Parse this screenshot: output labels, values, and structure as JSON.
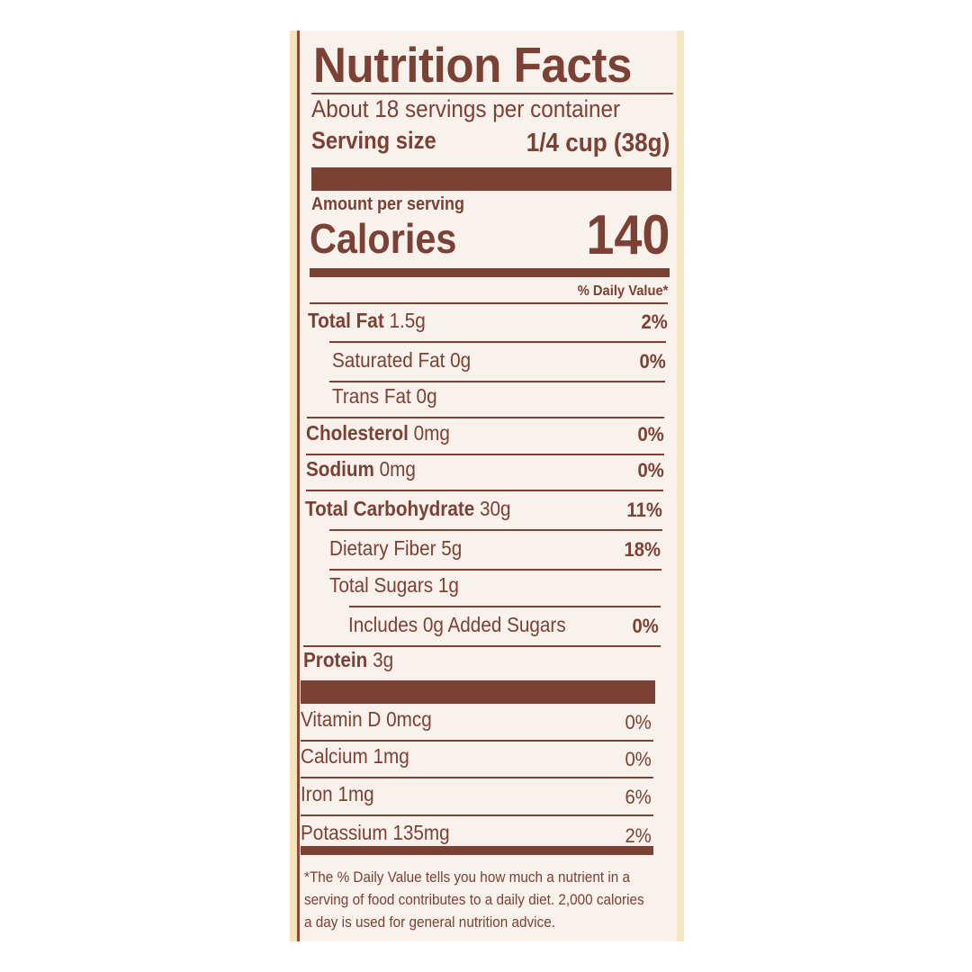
{
  "label": {
    "title": "Nutrition Facts",
    "servings_per_container": "About 18 servings per container",
    "serving_size_label": "Serving size",
    "serving_size_value": "1/4 cup (38g)",
    "amount_per_serving": "Amount per serving",
    "calories_label": "Calories",
    "calories_value": "140",
    "daily_value_header": "% Daily Value*",
    "nutrients": [
      {
        "name": "Total Fat",
        "amount": "1.5g",
        "dv": "2%",
        "bold": true,
        "indent": 0
      },
      {
        "name": "Saturated Fat",
        "amount": "0g",
        "dv": "0%",
        "bold": false,
        "indent": 1
      },
      {
        "name": "Trans Fat",
        "amount": "0g",
        "dv": "",
        "bold": false,
        "indent": 1
      },
      {
        "name": "Cholesterol",
        "amount": "0mg",
        "dv": "0%",
        "bold": true,
        "indent": 0
      },
      {
        "name": "Sodium",
        "amount": "0mg",
        "dv": "0%",
        "bold": true,
        "indent": 0
      },
      {
        "name": "Total Carbohydrate",
        "amount": "30g",
        "dv": "11%",
        "bold": true,
        "indent": 0
      },
      {
        "name": "Dietary Fiber",
        "amount": "5g",
        "dv": "18%",
        "bold": false,
        "indent": 1
      },
      {
        "name": "Total Sugars",
        "amount": "1g",
        "dv": "",
        "bold": false,
        "indent": 1
      },
      {
        "name": "Includes 0g Added Sugars",
        "amount": "",
        "dv": "0%",
        "bold": false,
        "indent": 2
      },
      {
        "name": "Protein",
        "amount": "3g",
        "dv": "",
        "bold": true,
        "indent": 0
      }
    ],
    "vitamins": [
      {
        "name": "Vitamin D",
        "amount": "0mcg",
        "dv": "0%"
      },
      {
        "name": "Calcium",
        "amount": "1mg",
        "dv": "0%"
      },
      {
        "name": "Iron",
        "amount": "1mg",
        "dv": "6%"
      },
      {
        "name": "Potassium",
        "amount": "135mg",
        "dv": "2%"
      }
    ],
    "footnote": "*The % Daily Value tells you how much a nutrient in a serving of food contributes to a daily diet. 2,000 calories a day is used for general nutrition advice."
  },
  "colors": {
    "ink": "#7a4134",
    "panel": "#f8f1ec"
  }
}
